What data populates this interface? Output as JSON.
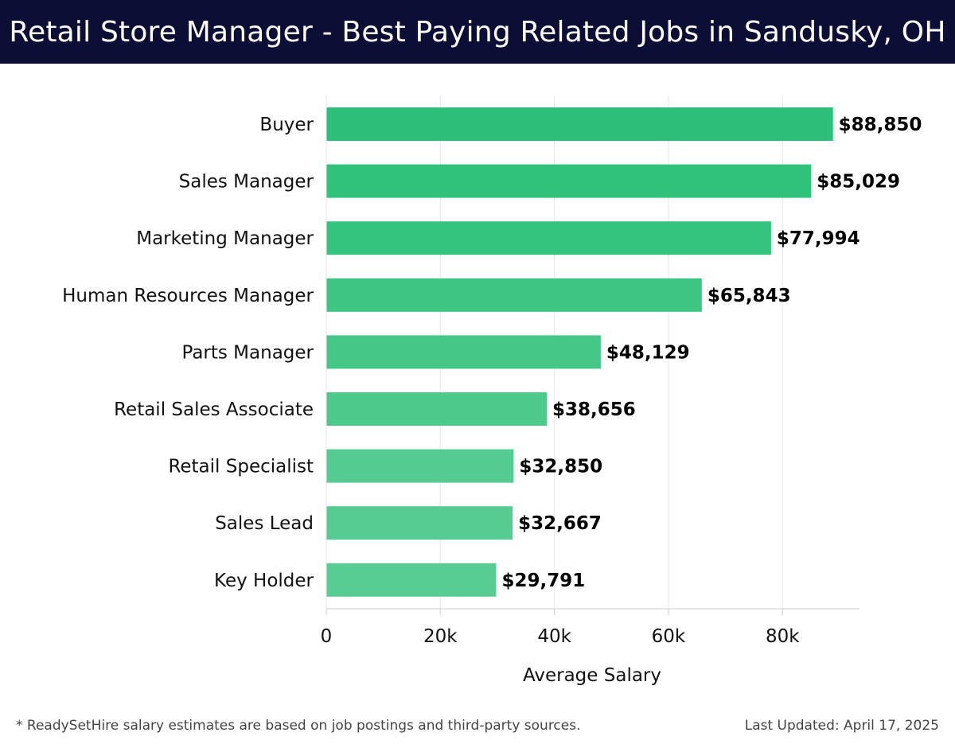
{
  "header": {
    "title": "Retail Store Manager - Best Paying Related Jobs in Sandusky, OH"
  },
  "footer": {
    "note": "* ReadySetHire salary estimates are based on job postings and third-party sources.",
    "updated": "Last Updated: April 17, 2025"
  },
  "chart_data": {
    "type": "bar",
    "orientation": "horizontal",
    "categories": [
      "Buyer",
      "Sales Manager",
      "Marketing Manager",
      "Human Resources Manager",
      "Parts Manager",
      "Retail Sales Associate",
      "Retail Specialist",
      "Sales Lead",
      "Key Holder"
    ],
    "values": [
      88850,
      85029,
      77994,
      65843,
      48129,
      38656,
      32850,
      32667,
      29791
    ],
    "value_labels": [
      "$88,850",
      "$85,029",
      "$77,994",
      "$65,843",
      "$48,129",
      "$38,656",
      "$32,850",
      "$32,667",
      "$29,791"
    ],
    "xlabel": "Average Salary",
    "ylabel": "",
    "xlim": [
      0,
      93500
    ],
    "xticks": [
      0,
      20000,
      40000,
      60000,
      80000
    ],
    "xtick_labels": [
      "0",
      "20k",
      "40k",
      "60k",
      "80k"
    ],
    "grid": true,
    "bar_colors": [
      "#2cbf79",
      "#2ec27a",
      "#35c47e",
      "#3dc683",
      "#45c788",
      "#4dc98c",
      "#54cb90",
      "#56cc92",
      "#58cd93"
    ]
  }
}
